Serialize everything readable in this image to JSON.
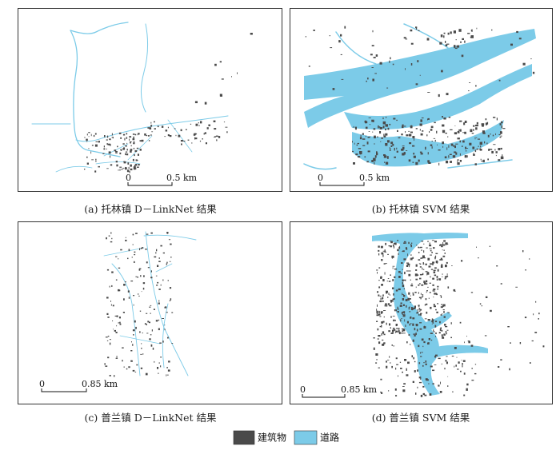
{
  "panels": [
    {
      "caption": "(a) 托林镇 D－LinkNet 结果",
      "scale_bar": {
        "start": "0",
        "end": "0.5 km"
      }
    },
    {
      "caption": "(b) 托林镇 SVM 结果",
      "scale_bar": {
        "start": "0",
        "end": "0.5 km"
      }
    },
    {
      "caption": "(c) 普兰镇 D－LinkNet 结果",
      "scale_bar": {
        "start": "0",
        "end": "0.85 km"
      }
    },
    {
      "caption": "(d) 普兰镇 SVM 结果",
      "scale_bar": {
        "start": "0",
        "end": "0.85 km"
      }
    }
  ],
  "legend": [
    {
      "label": "建筑物",
      "color": "#4a4a4a"
    },
    {
      "label": "道路",
      "color": "#7ccbe8"
    }
  ]
}
